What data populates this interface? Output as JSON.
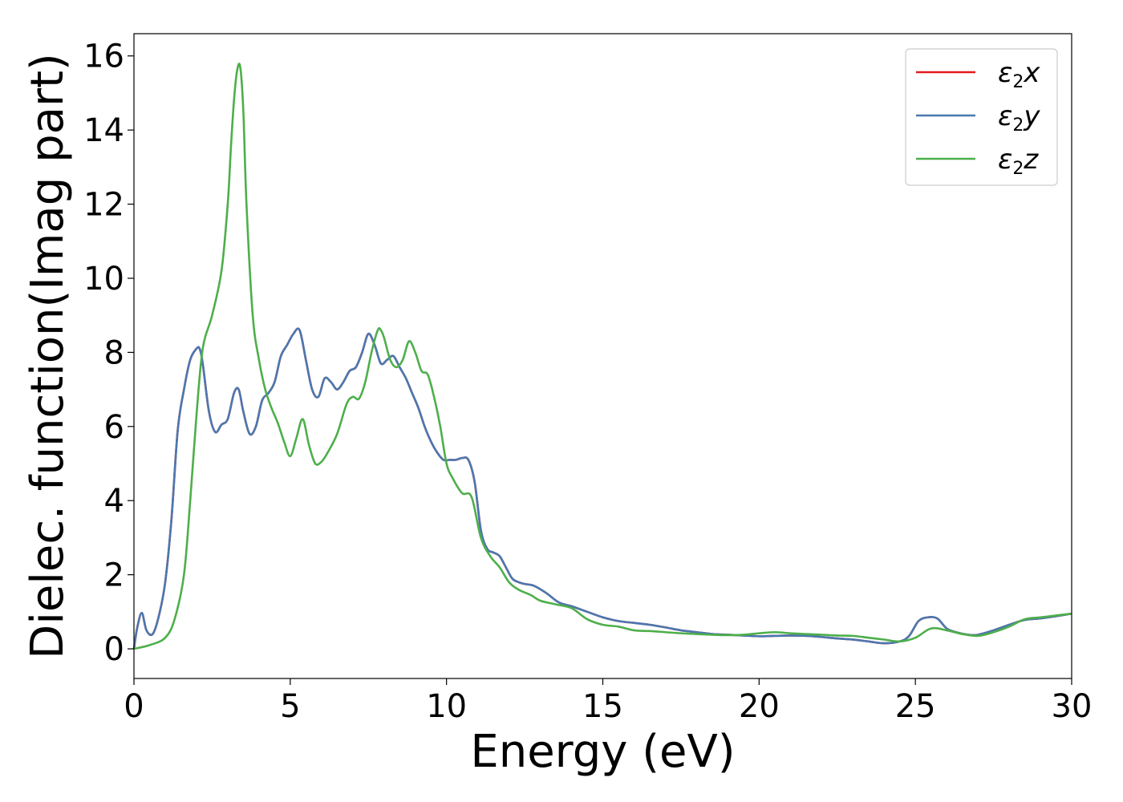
{
  "chart_data": {
    "type": "line",
    "xlabel": "Energy (eV)",
    "ylabel": "Dielec. function(Imag part)",
    "xlim": [
      0,
      30
    ],
    "ylim": [
      -0.8,
      16.6
    ],
    "xticks": [
      0,
      5,
      10,
      15,
      20,
      25,
      30
    ],
    "yticks": [
      0,
      2,
      4,
      6,
      8,
      10,
      12,
      14,
      16
    ],
    "grid": false,
    "legend_position": "top-right",
    "series": [
      {
        "name": "ε2x",
        "legend_base": "ε",
        "legend_sub": "2",
        "legend_var": "x",
        "color": "#e41a1c",
        "x": [
          0,
          0.1,
          0.25,
          0.4,
          0.6,
          0.8,
          1.0,
          1.2,
          1.4,
          1.6,
          1.8,
          2.0,
          2.1,
          2.2,
          2.4,
          2.6,
          2.8,
          3.0,
          3.2,
          3.35,
          3.5,
          3.7,
          3.9,
          4.1,
          4.3,
          4.5,
          4.7,
          4.9,
          5.1,
          5.3,
          5.5,
          5.7,
          5.9,
          6.1,
          6.3,
          6.5,
          6.7,
          6.9,
          7.1,
          7.3,
          7.5,
          7.7,
          7.9,
          8.1,
          8.3,
          8.5,
          8.7,
          8.9,
          9.1,
          9.3,
          9.5,
          9.7,
          9.9,
          10.1,
          10.3,
          10.5,
          10.7,
          10.9,
          11.1,
          11.3,
          11.5,
          11.7,
          11.9,
          12.1,
          12.3,
          12.5,
          12.8,
          13.2,
          13.6,
          14.0,
          14.5,
          15.0,
          15.5,
          16.0,
          16.5,
          17.0,
          17.5,
          18.0,
          18.5,
          19.0,
          19.5,
          20.0,
          20.5,
          21.0,
          21.5,
          22.0,
          22.5,
          23.0,
          23.5,
          24.0,
          24.5,
          24.8,
          25.1,
          25.4,
          25.7,
          26.0,
          26.3,
          26.7,
          27.0,
          27.5,
          28.0,
          28.5,
          29.0,
          29.5,
          30.0
        ],
        "y": [
          0.0,
          0.55,
          0.97,
          0.5,
          0.4,
          0.9,
          1.8,
          3.5,
          5.9,
          7.0,
          7.8,
          8.1,
          8.1,
          7.7,
          6.4,
          5.85,
          6.05,
          6.2,
          6.9,
          7.0,
          6.4,
          5.8,
          6.0,
          6.7,
          6.9,
          7.2,
          7.9,
          8.2,
          8.5,
          8.6,
          7.8,
          7.0,
          6.8,
          7.3,
          7.2,
          7.0,
          7.2,
          7.5,
          7.6,
          8.0,
          8.5,
          8.2,
          7.7,
          7.8,
          7.9,
          7.6,
          7.3,
          6.9,
          6.5,
          6.0,
          5.6,
          5.3,
          5.1,
          5.1,
          5.1,
          5.15,
          5.1,
          4.5,
          3.2,
          2.7,
          2.6,
          2.5,
          2.2,
          1.9,
          1.8,
          1.75,
          1.7,
          1.5,
          1.25,
          1.15,
          1.0,
          0.85,
          0.75,
          0.7,
          0.65,
          0.58,
          0.5,
          0.45,
          0.4,
          0.38,
          0.36,
          0.34,
          0.35,
          0.36,
          0.35,
          0.32,
          0.28,
          0.25,
          0.2,
          0.15,
          0.2,
          0.35,
          0.75,
          0.85,
          0.82,
          0.55,
          0.45,
          0.38,
          0.38,
          0.5,
          0.65,
          0.78,
          0.82,
          0.88,
          0.95
        ]
      },
      {
        "name": "ε2y",
        "legend_base": "ε",
        "legend_sub": "2",
        "legend_var": "y",
        "color": "#4a78b0",
        "x": [
          0,
          0.1,
          0.25,
          0.4,
          0.6,
          0.8,
          1.0,
          1.2,
          1.4,
          1.6,
          1.8,
          2.0,
          2.1,
          2.2,
          2.4,
          2.6,
          2.8,
          3.0,
          3.2,
          3.35,
          3.5,
          3.7,
          3.9,
          4.1,
          4.3,
          4.5,
          4.7,
          4.9,
          5.1,
          5.3,
          5.5,
          5.7,
          5.9,
          6.1,
          6.3,
          6.5,
          6.7,
          6.9,
          7.1,
          7.3,
          7.5,
          7.7,
          7.9,
          8.1,
          8.3,
          8.5,
          8.7,
          8.9,
          9.1,
          9.3,
          9.5,
          9.7,
          9.9,
          10.1,
          10.3,
          10.5,
          10.7,
          10.9,
          11.1,
          11.3,
          11.5,
          11.7,
          11.9,
          12.1,
          12.3,
          12.5,
          12.8,
          13.2,
          13.6,
          14.0,
          14.5,
          15.0,
          15.5,
          16.0,
          16.5,
          17.0,
          17.5,
          18.0,
          18.5,
          19.0,
          19.5,
          20.0,
          20.5,
          21.0,
          21.5,
          22.0,
          22.5,
          23.0,
          23.5,
          24.0,
          24.5,
          24.8,
          25.1,
          25.4,
          25.7,
          26.0,
          26.3,
          26.7,
          27.0,
          27.5,
          28.0,
          28.5,
          29.0,
          29.5,
          30.0
        ],
        "y": [
          0.0,
          0.55,
          0.97,
          0.5,
          0.4,
          0.9,
          1.8,
          3.5,
          5.9,
          7.0,
          7.8,
          8.1,
          8.1,
          7.7,
          6.4,
          5.85,
          6.05,
          6.2,
          6.9,
          7.0,
          6.4,
          5.8,
          6.0,
          6.7,
          6.9,
          7.2,
          7.9,
          8.2,
          8.5,
          8.6,
          7.8,
          7.0,
          6.8,
          7.3,
          7.2,
          7.0,
          7.2,
          7.5,
          7.6,
          8.0,
          8.5,
          8.2,
          7.7,
          7.8,
          7.9,
          7.6,
          7.3,
          6.9,
          6.5,
          6.0,
          5.6,
          5.3,
          5.1,
          5.1,
          5.1,
          5.15,
          5.1,
          4.5,
          3.2,
          2.7,
          2.6,
          2.5,
          2.2,
          1.9,
          1.8,
          1.75,
          1.7,
          1.5,
          1.25,
          1.15,
          1.0,
          0.85,
          0.75,
          0.7,
          0.65,
          0.58,
          0.5,
          0.45,
          0.4,
          0.38,
          0.36,
          0.34,
          0.35,
          0.36,
          0.35,
          0.32,
          0.28,
          0.25,
          0.2,
          0.15,
          0.2,
          0.35,
          0.75,
          0.85,
          0.82,
          0.55,
          0.45,
          0.38,
          0.38,
          0.5,
          0.65,
          0.78,
          0.82,
          0.88,
          0.95
        ]
      },
      {
        "name": "ε2z",
        "legend_base": "ε",
        "legend_sub": "2",
        "legend_var": "z",
        "color": "#4daf4a",
        "x": [
          0,
          0.5,
          1.0,
          1.3,
          1.6,
          1.8,
          2.0,
          2.2,
          2.5,
          2.8,
          3.0,
          3.1,
          3.2,
          3.3,
          3.4,
          3.5,
          3.6,
          3.8,
          4.0,
          4.2,
          4.4,
          4.6,
          4.8,
          5.0,
          5.2,
          5.4,
          5.6,
          5.8,
          6.0,
          6.2,
          6.5,
          6.8,
          7.0,
          7.2,
          7.4,
          7.6,
          7.8,
          7.9,
          8.0,
          8.2,
          8.4,
          8.6,
          8.8,
          9.0,
          9.2,
          9.4,
          9.6,
          9.8,
          10.0,
          10.2,
          10.5,
          10.8,
          11.1,
          11.4,
          11.7,
          12.0,
          12.3,
          12.7,
          13.0,
          13.5,
          14.0,
          14.5,
          15.0,
          15.5,
          16.0,
          16.5,
          17.0,
          17.5,
          18.0,
          18.5,
          19.0,
          19.5,
          20.0,
          20.5,
          21.0,
          21.5,
          22.0,
          22.5,
          23.0,
          23.5,
          24.0,
          24.5,
          25.0,
          25.5,
          26.0,
          26.5,
          27.0,
          27.5,
          28.0,
          28.5,
          29.0,
          29.5,
          30.0
        ],
        "y": [
          0.0,
          0.1,
          0.3,
          0.8,
          2.0,
          4.0,
          6.3,
          8.1,
          9.0,
          10.2,
          12.0,
          13.5,
          14.8,
          15.6,
          15.7,
          14.5,
          12.0,
          9.0,
          7.8,
          7.0,
          6.5,
          6.1,
          5.6,
          5.2,
          5.7,
          6.2,
          5.5,
          5.0,
          5.05,
          5.3,
          5.8,
          6.6,
          6.8,
          6.75,
          7.2,
          8.0,
          8.6,
          8.6,
          8.4,
          7.8,
          7.6,
          7.8,
          8.3,
          8.0,
          7.5,
          7.4,
          6.8,
          6.0,
          5.0,
          4.6,
          4.2,
          4.1,
          3.0,
          2.5,
          2.2,
          1.8,
          1.6,
          1.45,
          1.3,
          1.2,
          1.1,
          0.8,
          0.65,
          0.6,
          0.5,
          0.48,
          0.45,
          0.42,
          0.4,
          0.38,
          0.37,
          0.38,
          0.42,
          0.45,
          0.42,
          0.4,
          0.38,
          0.36,
          0.35,
          0.3,
          0.25,
          0.2,
          0.3,
          0.55,
          0.5,
          0.4,
          0.35,
          0.45,
          0.6,
          0.8,
          0.85,
          0.9,
          0.95
        ]
      }
    ]
  }
}
